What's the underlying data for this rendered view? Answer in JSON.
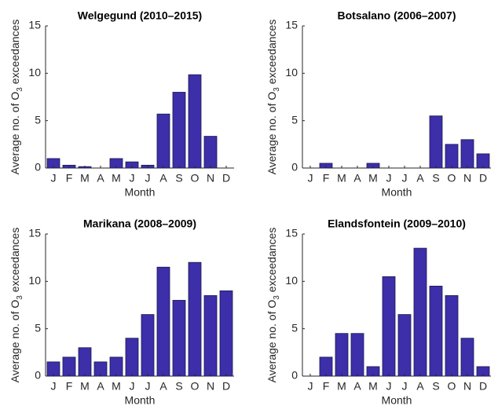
{
  "chart_data": [
    {
      "type": "bar",
      "title": "Welgegund (2010–2015)",
      "xlabel": "Month",
      "ylabel": {
        "text": "Average no. of O",
        "sub": "3",
        "after": "exceedances"
      },
      "categories": [
        "J",
        "F",
        "M",
        "A",
        "M",
        "J",
        "J",
        "A",
        "S",
        "O",
        "N",
        "D"
      ],
      "values": [
        1.0,
        0.3,
        0.15,
        0,
        1.0,
        0.65,
        0.3,
        5.7,
        8.0,
        9.85,
        3.35,
        0
      ],
      "color": "#3d2eaa",
      "ylim": [
        0,
        15
      ],
      "yticks": [
        0,
        5,
        10,
        15
      ]
    },
    {
      "type": "bar",
      "title": "Botsalano (2006–2007)",
      "xlabel": "Month",
      "ylabel": {
        "text": "Average no. of O",
        "sub": "3",
        "after": "exceedances"
      },
      "categories": [
        "J",
        "F",
        "M",
        "A",
        "M",
        "J",
        "J",
        "A",
        "S",
        "O",
        "N",
        "D"
      ],
      "values": [
        0,
        0.5,
        0,
        0,
        0.5,
        0,
        0,
        0,
        5.5,
        2.5,
        3.0,
        1.5
      ],
      "color": "#3d2eaa",
      "ylim": [
        0,
        15
      ],
      "yticks": [
        0,
        5,
        10,
        15
      ]
    },
    {
      "type": "bar",
      "title": "Marikana (2008–2009)",
      "xlabel": "Month",
      "ylabel": {
        "text": "Average no. of O",
        "sub": "3",
        "after": "exceedances"
      },
      "categories": [
        "J",
        "F",
        "M",
        "A",
        "M",
        "J",
        "J",
        "A",
        "S",
        "O",
        "N",
        "D"
      ],
      "values": [
        1.5,
        2,
        3,
        1.5,
        2,
        4,
        6.5,
        11.5,
        8,
        12,
        8.5,
        9
      ],
      "color": "#3d2eaa",
      "ylim": [
        0,
        15
      ],
      "yticks": [
        0,
        5,
        10,
        15
      ]
    },
    {
      "type": "bar",
      "title": "Elandsfontein (2009–2010)",
      "xlabel": "Month",
      "ylabel": {
        "text": "Average no. of O",
        "sub": "3",
        "after": "exceedances"
      },
      "categories": [
        "J",
        "F",
        "M",
        "A",
        "M",
        "J",
        "J",
        "A",
        "S",
        "O",
        "N",
        "D"
      ],
      "values": [
        0,
        2,
        4.5,
        4.5,
        1,
        10.5,
        6.5,
        13.5,
        9.5,
        8.5,
        4,
        1
      ],
      "color": "#3d2eaa",
      "ylim": [
        0,
        15
      ],
      "yticks": [
        0,
        5,
        10,
        15
      ]
    }
  ]
}
